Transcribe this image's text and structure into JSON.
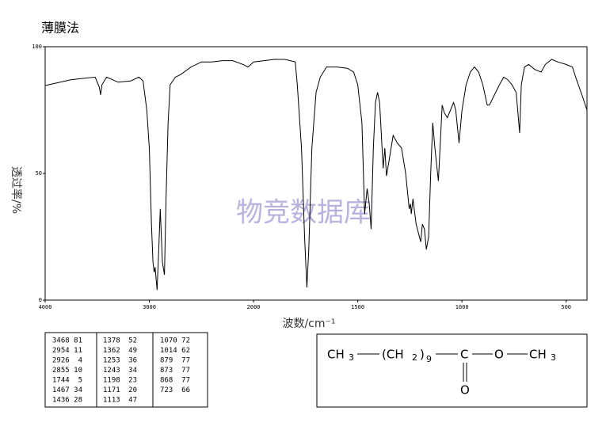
{
  "chart_data": {
    "type": "line",
    "title": "薄膜法",
    "xlabel": "波数/cm⁻¹",
    "ylabel": "透过率/%",
    "watermark": "物竞数据库",
    "color": "#000000",
    "x": [
      4000,
      3750,
      3520,
      3480,
      3468,
      3455,
      3410,
      3300,
      3180,
      3100,
      3060,
      3025,
      3000,
      2980,
      2965,
      2954,
      2945,
      2926,
      2910,
      2895,
      2875,
      2855,
      2840,
      2820,
      2800,
      2750,
      2700,
      2600,
      2500,
      2400,
      2300,
      2200,
      2100,
      2053,
      2000,
      1900,
      1850,
      1800,
      1790,
      1770,
      1755,
      1744,
      1735,
      1720,
      1700,
      1680,
      1650,
      1600,
      1550,
      1520,
      1500,
      1480,
      1467,
      1455,
      1445,
      1436,
      1425,
      1415,
      1405,
      1395,
      1378,
      1370,
      1362,
      1350,
      1330,
      1310,
      1290,
      1270,
      1253,
      1247,
      1243,
      1235,
      1220,
      1198,
      1190,
      1180,
      1171,
      1160,
      1150,
      1140,
      1130,
      1113,
      1105,
      1095,
      1085,
      1070,
      1055,
      1040,
      1030,
      1014,
      1000,
      980,
      960,
      940,
      920,
      900,
      879,
      873,
      868,
      850,
      820,
      800,
      780,
      760,
      740,
      723,
      715,
      700,
      680,
      650,
      620,
      600,
      570,
      540,
      500,
      470,
      450,
      420,
      400
    ],
    "values": [
      84.7,
      87,
      88,
      84,
      81,
      85,
      88,
      86,
      86.5,
      88,
      86.5,
      75,
      60,
      30,
      15,
      11,
      13,
      4,
      20,
      36,
      15,
      10,
      40,
      70,
      85,
      88,
      89,
      92,
      94,
      94,
      94.5,
      94.5,
      93,
      92,
      94,
      95,
      95,
      94,
      85,
      60,
      25,
      5,
      20,
      60,
      82,
      88,
      92,
      92,
      91.5,
      90,
      85,
      70,
      34,
      44,
      38,
      28,
      60,
      78,
      82,
      78,
      52,
      60,
      49,
      55,
      65,
      62,
      60,
      50,
      36,
      38,
      34,
      40,
      30,
      23,
      30,
      28,
      20,
      25,
      50,
      70,
      60,
      47,
      60,
      77,
      74,
      72,
      75,
      78,
      75,
      62,
      75,
      85,
      90,
      92,
      90,
      85,
      77,
      77,
      77,
      80,
      85,
      88,
      87,
      85,
      82,
      66,
      85,
      92,
      93,
      91,
      90,
      93,
      95,
      94,
      93,
      92,
      87,
      80,
      75
    ],
    "xlim": [
      4000,
      400
    ],
    "ylim": [
      0,
      100
    ],
    "xticks": [
      4000,
      3000,
      2000,
      1500,
      1000,
      500
    ],
    "yticks": [
      0,
      50,
      100
    ]
  },
  "peaks": [
    [
      3468,
      81
    ],
    [
      2954,
      11
    ],
    [
      2926,
      4
    ],
    [
      2855,
      10
    ],
    [
      1744,
      5
    ],
    [
      1467,
      34
    ],
    [
      1436,
      28
    ],
    [
      1378,
      52
    ],
    [
      1362,
      49
    ],
    [
      1253,
      36
    ],
    [
      1243,
      34
    ],
    [
      1198,
      23
    ],
    [
      1171,
      20
    ],
    [
      1113,
      47
    ],
    [
      1070,
      72
    ],
    [
      1014,
      62
    ],
    [
      879,
      77
    ],
    [
      873,
      77
    ],
    [
      868,
      77
    ],
    [
      723,
      66
    ]
  ],
  "structure": {
    "left": "CH",
    "left_sub": "3",
    "chain": "(CH",
    "chain_sub": "2",
    "chain_close": ")",
    "chain_n": "9",
    "carbon": "C",
    "ether_o": "O",
    "right": "CH",
    "right_sub": "3",
    "carbonyl_o": "O"
  }
}
